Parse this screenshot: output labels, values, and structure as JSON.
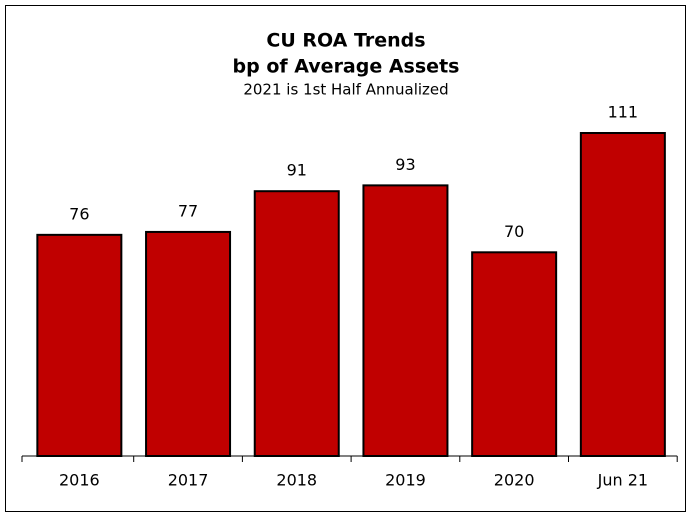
{
  "chart_data": {
    "type": "bar",
    "title": "CU ROA Trends",
    "subtitle": "bp of Average Assets",
    "annotation": "2021 is 1st Half Annualized",
    "categories": [
      "2016",
      "2017",
      "2018",
      "2019",
      "2020",
      "Jun 21"
    ],
    "values": [
      76,
      77,
      91,
      93,
      70,
      111
    ],
    "color": "#c00000"
  }
}
